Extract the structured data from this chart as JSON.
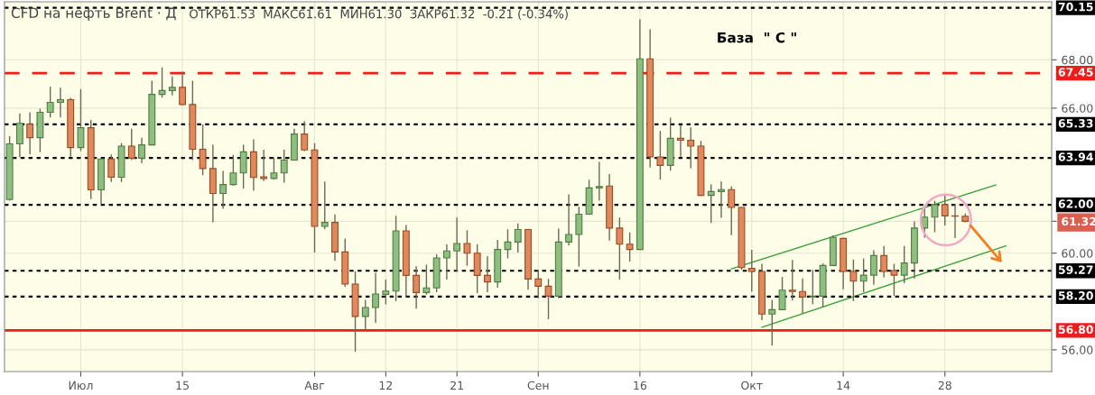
{
  "chart_data": {
    "type": "candlestick",
    "title": "CFD на нефть Brent · Д",
    "subtitle": "ОТКР61.53  МАКС61.61  МИН61.30  ЗАКР61.32  -0.21 (-0.34%)",
    "annotations": [
      "База  \" С \""
    ],
    "categories": [
      null,
      null,
      null,
      null,
      null,
      null,
      null,
      "Июл",
      null,
      null,
      null,
      null,
      null,
      null,
      null,
      null,
      null,
      "15",
      null,
      null,
      null,
      null,
      null,
      null,
      null,
      null,
      null,
      null,
      null,
      null,
      "Авг",
      null,
      null,
      null,
      null,
      null,
      null,
      "12",
      null,
      null,
      null,
      null,
      null,
      null,
      "21",
      null,
      null,
      null,
      null,
      null,
      null,
      null,
      "Сен",
      null,
      null,
      null,
      null,
      null,
      null,
      null,
      null,
      null,
      "16",
      null,
      null,
      null,
      null,
      null,
      null,
      null,
      null,
      null,
      null,
      "Окт",
      null,
      null,
      null,
      null,
      null,
      null,
      null,
      null,
      "14",
      null,
      null,
      null,
      null,
      null,
      null,
      null,
      null,
      null,
      "28",
      null,
      null,
      null,
      null,
      null,
      null,
      null,
      null,
      null,
      null
    ],
    "ohlc": [
      [
        62.22,
        64.81,
        62.2,
        64.52
      ],
      [
        64.52,
        65.76,
        64.0,
        65.37
      ],
      [
        65.34,
        65.8,
        64.12,
        64.78
      ],
      [
        64.78,
        65.95,
        64.21,
        65.83
      ],
      [
        65.83,
        66.86,
        65.64,
        66.24
      ],
      [
        66.24,
        66.82,
        65.64,
        66.35
      ],
      [
        66.35,
        66.4,
        64.02,
        64.37
      ],
      [
        64.37,
        66.76,
        64.25,
        65.19
      ],
      [
        65.19,
        65.49,
        62.26,
        62.62
      ],
      [
        62.62,
        63.9,
        62.07,
        63.9
      ],
      [
        63.9,
        64.06,
        62.97,
        63.14
      ],
      [
        63.14,
        64.53,
        62.97,
        64.43
      ],
      [
        64.43,
        65.12,
        63.88,
        63.93
      ],
      [
        63.93,
        64.75,
        63.75,
        64.48
      ],
      [
        64.48,
        67.11,
        64.48,
        66.57
      ],
      [
        66.57,
        67.66,
        66.46,
        66.73
      ],
      [
        66.73,
        67.29,
        66.55,
        66.86
      ],
      [
        66.86,
        67.48,
        66.15,
        66.15
      ],
      [
        66.15,
        67.11,
        63.88,
        64.3
      ],
      [
        64.3,
        65.3,
        63.25,
        63.5
      ],
      [
        63.5,
        64.46,
        61.3,
        62.47
      ],
      [
        62.47,
        63.38,
        61.86,
        62.84
      ],
      [
        62.84,
        64.04,
        62.82,
        63.32
      ],
      [
        63.32,
        64.46,
        62.7,
        64.19
      ],
      [
        64.19,
        64.68,
        62.61,
        63.13
      ],
      [
        63.16,
        64.25,
        63.01,
        63.09
      ],
      [
        63.09,
        63.94,
        63.07,
        63.32
      ],
      [
        63.32,
        64.25,
        62.94,
        63.85
      ],
      [
        63.85,
        65.12,
        63.85,
        64.93
      ],
      [
        64.93,
        65.43,
        64.25,
        64.27
      ],
      [
        64.27,
        64.52,
        60.05,
        61.11
      ],
      [
        61.11,
        62.94,
        61.02,
        61.27
      ],
      [
        61.27,
        61.58,
        59.71,
        60.05
      ],
      [
        60.05,
        60.58,
        58.63,
        58.72
      ],
      [
        58.72,
        59.22,
        55.95,
        57.38
      ],
      [
        57.38,
        58.04,
        56.86,
        57.75
      ],
      [
        57.75,
        59.16,
        57.14,
        58.31
      ],
      [
        58.29,
        58.88,
        57.91,
        58.43
      ],
      [
        58.43,
        61.52,
        58.04,
        60.92
      ],
      [
        60.92,
        61.14,
        58.22,
        59.08
      ],
      [
        59.08,
        59.43,
        57.73,
        58.37
      ],
      [
        58.37,
        59.5,
        58.31,
        58.56
      ],
      [
        58.56,
        59.93,
        58.41,
        59.8
      ],
      [
        59.8,
        60.34,
        58.93,
        60.09
      ],
      [
        60.09,
        61.45,
        59.28,
        60.4
      ],
      [
        60.4,
        60.92,
        59.5,
        60.0
      ],
      [
        60.0,
        60.34,
        58.37,
        59.08
      ],
      [
        59.08,
        59.84,
        58.41,
        58.81
      ],
      [
        58.81,
        60.52,
        58.6,
        60.15
      ],
      [
        60.15,
        60.96,
        59.81,
        60.46
      ],
      [
        60.46,
        61.2,
        60.05,
        60.98
      ],
      [
        60.98,
        60.98,
        58.51,
        58.93
      ],
      [
        58.93,
        59.28,
        58.16,
        58.63
      ],
      [
        58.63,
        58.91,
        57.29,
        58.22
      ],
      [
        58.22,
        60.99,
        58.16,
        60.46
      ],
      [
        60.46,
        62.41,
        60.34,
        60.77
      ],
      [
        60.77,
        61.89,
        59.47,
        61.61
      ],
      [
        61.61,
        63.01,
        61.61,
        62.7
      ],
      [
        62.7,
        63.75,
        62.2,
        62.76
      ],
      [
        62.78,
        63.25,
        60.55,
        61.04
      ],
      [
        61.04,
        61.45,
        58.93,
        60.37
      ],
      [
        60.37,
        60.83,
        59.68,
        60.15
      ],
      [
        60.15,
        69.65,
        60.15,
        68.04
      ],
      [
        68.04,
        69.24,
        63.57,
        63.98
      ],
      [
        63.98,
        65.03,
        63.07,
        63.63
      ],
      [
        63.63,
        65.58,
        63.44,
        64.75
      ],
      [
        64.75,
        65.27,
        64.02,
        64.67
      ],
      [
        64.67,
        65.18,
        63.54,
        64.43
      ],
      [
        64.43,
        64.62,
        62.39,
        62.39
      ],
      [
        62.39,
        62.82,
        61.27,
        62.55
      ],
      [
        62.55,
        62.94,
        61.49,
        62.63
      ],
      [
        62.63,
        62.73,
        60.77,
        61.89
      ],
      [
        61.89,
        61.89,
        59.34,
        59.4
      ],
      [
        59.37,
        60.11,
        58.43,
        59.24
      ],
      [
        59.24,
        59.53,
        57.25,
        57.48
      ],
      [
        57.48,
        58.04,
        56.2,
        57.66
      ],
      [
        57.66,
        58.99,
        57.66,
        58.47
      ],
      [
        58.47,
        59.69,
        58.06,
        58.41
      ],
      [
        58.41,
        58.93,
        57.54,
        58.19
      ],
      [
        58.19,
        59.28,
        57.91,
        58.22
      ],
      [
        58.22,
        59.55,
        57.79,
        59.49
      ],
      [
        59.49,
        60.71,
        59.49,
        60.65
      ],
      [
        60.61,
        60.61,
        58.53,
        59.24
      ],
      [
        59.24,
        59.71,
        58.04,
        58.84
      ],
      [
        58.84,
        59.75,
        58.41,
        59.09
      ],
      [
        59.09,
        60.09,
        58.72,
        59.9
      ],
      [
        59.9,
        60.27,
        59.03,
        59.24
      ],
      [
        59.28,
        59.53,
        58.26,
        59.09
      ],
      [
        59.09,
        60.27,
        58.78,
        59.59
      ],
      [
        59.59,
        61.29,
        58.97,
        61.04
      ],
      [
        61.04,
        61.89,
        60.67,
        61.49
      ],
      [
        61.49,
        62.14,
        60.89,
        62.01
      ],
      [
        62.01,
        62.39,
        61.17,
        61.54
      ],
      [
        61.54,
        62.01,
        60.65,
        61.53
      ],
      [
        61.53,
        61.61,
        61.3,
        61.32
      ],
      null,
      null,
      null,
      null,
      null,
      null,
      null,
      null
    ],
    "colors": [
      "#8fbf80",
      "#8fbf80",
      "#e0895d",
      "#8fbf80",
      "#8fbf80",
      "#8fbf80",
      "#e0895d",
      "#8fbf80",
      "#e0895d",
      "#8fbf80",
      "#e0895d",
      "#8fbf80",
      "#e0895d",
      "#8fbf80",
      "#8fbf80",
      "#8fbf80",
      "#8fbf80",
      "#e0895d",
      "#e0895d",
      "#e0895d",
      "#e0895d",
      "#8fbf80",
      "#8fbf80",
      "#8fbf80",
      "#e0895d",
      "#e0895d",
      "#8fbf80",
      "#8fbf80",
      "#8fbf80",
      "#e0895d",
      "#e0895d",
      "#8fbf80",
      "#e0895d",
      "#e0895d",
      "#e0895d",
      "#8fbf80",
      "#8fbf80",
      "#8fbf80",
      "#8fbf80",
      "#e0895d",
      "#e0895d",
      "#8fbf80",
      "#8fbf80",
      "#8fbf80",
      "#8fbf80",
      "#e0895d",
      "#e0895d",
      "#e0895d",
      "#8fbf80",
      "#8fbf80",
      "#8fbf80",
      "#e0895d",
      "#e0895d",
      "#e0895d",
      "#8fbf80",
      "#8fbf80",
      "#8fbf80",
      "#8fbf80",
      "#8fbf80",
      "#e0895d",
      "#e0895d",
      "#e0895d",
      "#8fbf80",
      "#e0895d",
      "#e0895d",
      "#8fbf80",
      "#e0895d",
      "#e0895d",
      "#e0895d",
      "#8fbf80",
      "#8fbf80",
      "#e0895d",
      "#e0895d",
      "#e0895d",
      "#e0895d",
      "#8fbf80",
      "#8fbf80",
      "#e0895d",
      "#e0895d",
      "#8fbf80",
      "#8fbf80",
      "#8fbf80",
      "#e0895d",
      "#e0895d",
      "#8fbf80",
      "#8fbf80",
      "#e0895d",
      "#e0895d",
      "#8fbf80",
      "#8fbf80",
      "#8fbf80",
      "#8fbf80",
      "#e0895d",
      "#e0895d",
      "#e0895d",
      null,
      null,
      null,
      null,
      null,
      null,
      null,
      null
    ],
    "series": [
      {
        "type": "line",
        "values": [
          null,
          null,
          null,
          null,
          null,
          null,
          null,
          null,
          null,
          null,
          null,
          null,
          null,
          null,
          null,
          null,
          null,
          null,
          null,
          null,
          null,
          null,
          null,
          null,
          null,
          null,
          null,
          null,
          null,
          null,
          null,
          null,
          null,
          null,
          null,
          null,
          null,
          null,
          null,
          null,
          null,
          null,
          null,
          null,
          null,
          null,
          null,
          null,
          null,
          null,
          null,
          null,
          null,
          null,
          null,
          null,
          null,
          null,
          null,
          null,
          null,
          null,
          null,
          null,
          null,
          null,
          null,
          null,
          null,
          null,
          null,
          59.35,
          null,
          null,
          null,
          null,
          null,
          null,
          null,
          null,
          null,
          null,
          null,
          null,
          null,
          null,
          null,
          null,
          null,
          null,
          null,
          null,
          null,
          null,
          null,
          null,
          null,
          62.82,
          null,
          null,
          null,
          null,
          null
        ],
        "color": "#3aa03a"
      },
      {
        "type": "line",
        "values": [
          null,
          null,
          null,
          null,
          null,
          null,
          null,
          null,
          null,
          null,
          null,
          null,
          null,
          null,
          null,
          null,
          null,
          null,
          null,
          null,
          null,
          null,
          null,
          null,
          null,
          null,
          null,
          null,
          null,
          null,
          null,
          null,
          null,
          null,
          null,
          null,
          null,
          null,
          null,
          null,
          null,
          null,
          null,
          null,
          null,
          null,
          null,
          null,
          null,
          null,
          null,
          null,
          null,
          null,
          null,
          null,
          null,
          null,
          null,
          null,
          null,
          null,
          null,
          null,
          null,
          null,
          null,
          null,
          null,
          null,
          null,
          null,
          null,
          null,
          56.93,
          null,
          null,
          null,
          null,
          null,
          null,
          null,
          null,
          null,
          null,
          null,
          null,
          null,
          null,
          null,
          null,
          null,
          null,
          null,
          null,
          null,
          null,
          null,
          60.3,
          null,
          null,
          null,
          null
        ],
        "color": "#3aa03a"
      }
    ],
    "ylim": [
      55.1,
      70.4
    ],
    "yticks": [
      {
        "value": 56,
        "label": "56.00"
      },
      {
        "value": 60,
        "label": "60.00"
      },
      {
        "value": 61.32,
        "label": "61.32"
      },
      {
        "value": 66,
        "label": "66.00"
      },
      {
        "value": 68,
        "label": "68.00"
      }
    ],
    "ref_lines": [
      {
        "axis": "y",
        "value": 70.15,
        "label": "70.15",
        "color": "#000000",
        "line_style": "dotted"
      },
      {
        "axis": "y",
        "value": 67.45,
        "label": "67.45",
        "color": "#ee1c1c",
        "line_style": "dashed"
      },
      {
        "axis": "y",
        "value": 65.33,
        "label": "65.33",
        "color": "#000000",
        "line_style": "dotted"
      },
      {
        "axis": "y",
        "value": 63.94,
        "label": "63.94",
        "color": "#000000",
        "line_style": "dotted"
      },
      {
        "axis": "y",
        "value": 62.0,
        "label": "62.00",
        "color": "#000000",
        "line_style": "dotted"
      },
      {
        "axis": "y",
        "value": 59.27,
        "label": "59.27",
        "color": "#000000",
        "line_style": "dotted"
      },
      {
        "axis": "y",
        "value": 58.2,
        "label": "58.20",
        "color": "#000000",
        "line_style": "dotted"
      },
      {
        "axis": "y",
        "value": 56.8,
        "label": "56.80",
        "color": "#ee1c1c",
        "line_style": "solid"
      }
    ],
    "grid": true
  }
}
